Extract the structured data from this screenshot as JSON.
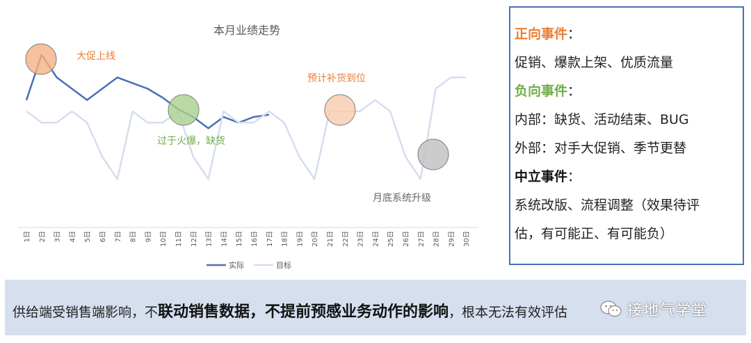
{
  "chart_data": {
    "type": "line",
    "title": "本月业绩走势",
    "categories": [
      "1日",
      "2日",
      "3日",
      "4日",
      "5日",
      "6日",
      "7日",
      "8日",
      "9日",
      "10日",
      "11日",
      "12日",
      "13日",
      "14日",
      "15日",
      "16日",
      "17日",
      "18日",
      "19日",
      "20日",
      "21日",
      "22日",
      "23日",
      "24日",
      "25日",
      "26日",
      "27日",
      "28日",
      "29日",
      "30日"
    ],
    "series": [
      {
        "name": "实际",
        "color": "#4a6fb5",
        "values": [
          60,
          100,
          80,
          70,
          60,
          70,
          80,
          75,
          70,
          62,
          52,
          45,
          35,
          45,
          40,
          45,
          47,
          null,
          null,
          null,
          null,
          null,
          null,
          null,
          null,
          null,
          null,
          null,
          null,
          null
        ]
      },
      {
        "name": "目标",
        "color": "#d5deee",
        "values": [
          50,
          40,
          40,
          50,
          40,
          10,
          -10,
          50,
          40,
          40,
          50,
          10,
          -10,
          50,
          40,
          40,
          50,
          40,
          10,
          -10,
          50,
          50,
          50,
          60,
          50,
          10,
          -10,
          70,
          80,
          80
        ]
      }
    ],
    "ylim": [
      -30,
      130
    ],
    "grid": false,
    "legend_placement": "bottom",
    "annotations": [
      {
        "text": "大促上线",
        "color": "#ed7d31",
        "circle_color": "#f4b183",
        "at_category": "2日"
      },
      {
        "text": "过于火爆，缺货",
        "color": "#70ad47",
        "circle_color": "#a9d18e",
        "at_category": "11日"
      },
      {
        "text": "预计补货到位",
        "color": "#ed7d31",
        "circle_color": "#f8cbad",
        "at_category": "22日"
      },
      {
        "text": "月底系统升级",
        "color": "#666666",
        "circle_color": "#bfbfbf",
        "at_category": "28日"
      }
    ]
  },
  "events": {
    "positive_title": "正向事件",
    "colon": "：",
    "positive_items": "促销、爆款上架、优质流量",
    "negative_title": "负向事件",
    "negative_internal": "内部：缺货、活动结束、BUG",
    "negative_external": "外部：对手大促销、季节更替",
    "neutral_title": "中立事件",
    "neutral_line1": "系统改版、流程调整（效果待评",
    "neutral_line2": "估，有可能正、有可能负）"
  },
  "banner": {
    "part1": "供给端受销售端影响，不",
    "part2": "联动销售数据，不提前预感业务动作的影响",
    "part3": "，根本",
    "part4": "无法有效评估"
  },
  "watermark": {
    "text": "接地气学堂",
    "icon": "wechat-icon"
  }
}
